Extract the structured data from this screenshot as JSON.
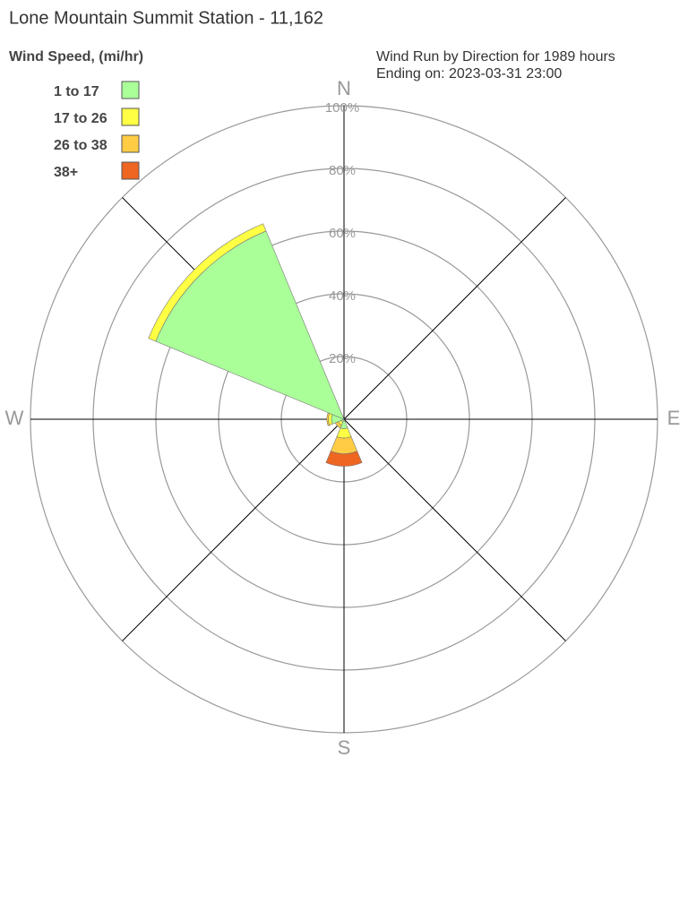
{
  "chart_data": {
    "type": "windrose",
    "title": "Lone Mountain Summit Station - 11,162",
    "legend_title": "Wind Speed, (mi/hr)",
    "subtitle": [
      "Wind Run by Direction for 1989 hours",
      "Ending on: 2023-03-31 23:00"
    ],
    "categories": [
      "N",
      null,
      "E",
      null,
      "S",
      null,
      "W",
      null
    ],
    "series": [
      {
        "name": "1 to 17",
        "color": "#aaff99",
        "values": [
          0,
          0,
          0,
          0,
          3,
          1,
          4,
          65
        ]
      },
      {
        "name": "17 to 26",
        "color": "#ffff44",
        "values": [
          0,
          0,
          0,
          0,
          3,
          1,
          1,
          2.5
        ]
      },
      {
        "name": "26 to 38",
        "color": "#ffcc44",
        "values": [
          0,
          0,
          0,
          0,
          5,
          1,
          0.5,
          0
        ]
      },
      {
        "name": "38+",
        "color": "#ee6622",
        "values": [
          0,
          0,
          0,
          0,
          4,
          0,
          0,
          0
        ]
      }
    ],
    "rlim": [
      0,
      100
    ],
    "rticks": [
      {
        "value": 20,
        "label": "20%"
      },
      {
        "value": 40,
        "label": "40%"
      },
      {
        "value": 60,
        "label": "60%"
      },
      {
        "value": 80,
        "label": "80%"
      },
      {
        "value": 100,
        "label": "100%"
      }
    ],
    "grid": true
  }
}
